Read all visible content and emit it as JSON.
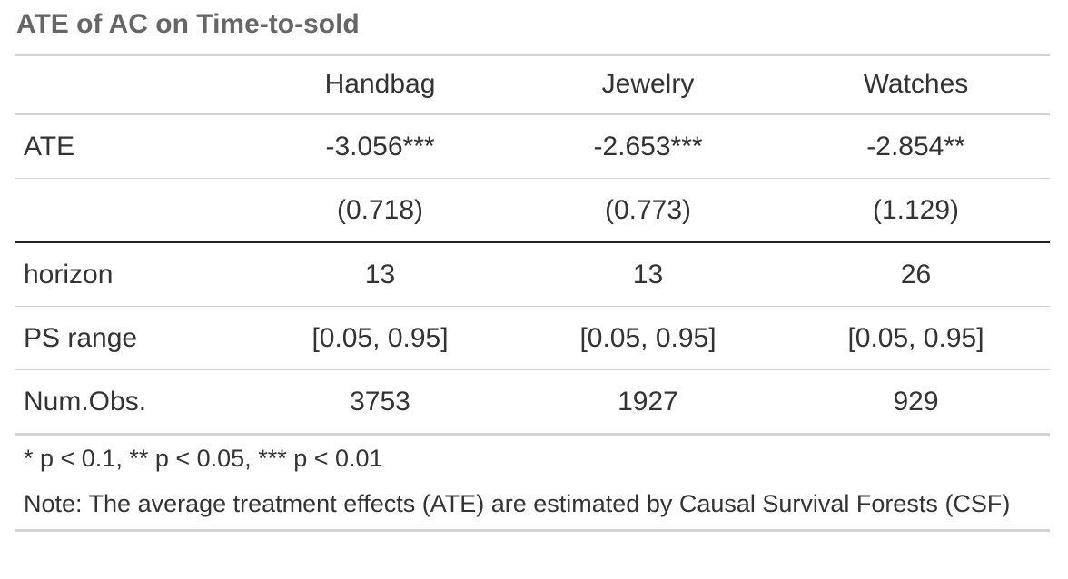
{
  "table": {
    "title": "ATE of AC on Time-to-sold",
    "columns": [
      "",
      "Handbag",
      "Jewelry",
      "Watches"
    ],
    "rows": [
      {
        "label": "ATE",
        "values": [
          "-3.056***",
          "-2.653***",
          "-2.854**"
        ]
      },
      {
        "label": "",
        "values": [
          "(0.718)",
          "(0.773)",
          "(1.129)"
        ]
      },
      {
        "label": "horizon",
        "values": [
          "13",
          "13",
          "26"
        ]
      },
      {
        "label": "PS range",
        "values": [
          "[0.05, 0.95]",
          "[0.05, 0.95]",
          "[0.05, 0.95]"
        ]
      },
      {
        "label": "Num.Obs.",
        "values": [
          "3753",
          "1927",
          "929"
        ]
      }
    ],
    "footnotes": [
      "* p < 0.1, ** p < 0.05, *** p < 0.01",
      "Note: The average treatment effects (ATE) are estimated by Causal Survival Forests (CSF)"
    ]
  }
}
